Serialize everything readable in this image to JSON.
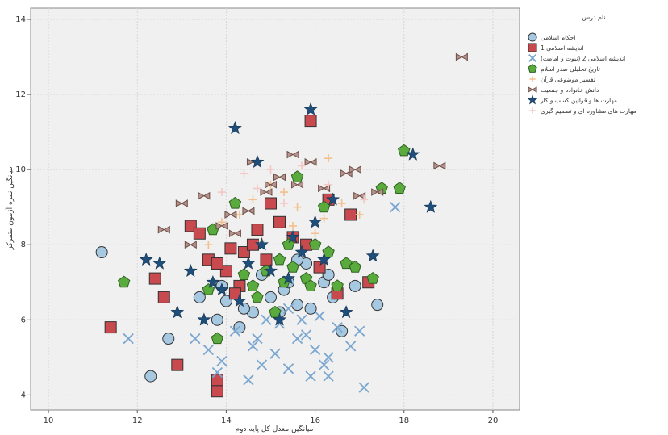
{
  "chart_data": {
    "type": "scatter",
    "xlabel": "میانگین معدل کل پایه دوم",
    "ylabel": "میانگین نمره آزمون متمرکز",
    "xlim": [
      9.6,
      20.6
    ],
    "ylim": [
      3.6,
      14.3
    ],
    "xticks": [
      "10",
      "12",
      "14",
      "16",
      "18",
      "20"
    ],
    "xtick_values": [
      10,
      12,
      14,
      16,
      18,
      20
    ],
    "yticks": [
      "4",
      "6",
      "8",
      "10",
      "12",
      "14"
    ],
    "ytick_values": [
      4,
      6,
      8,
      10,
      12,
      14
    ],
    "grid": true,
    "legend_title": "نام درس",
    "legend_position": "right",
    "series": [
      {
        "name": "احکام اسلامی",
        "marker": "circle",
        "color": "#a6c8e0",
        "points": [
          [
            11.2,
            7.8
          ],
          [
            12.3,
            4.5
          ],
          [
            12.7,
            5.5
          ],
          [
            13.4,
            6.6
          ],
          [
            13.8,
            6.0
          ],
          [
            14.0,
            6.5
          ],
          [
            14.3,
            5.8
          ],
          [
            14.6,
            6.2
          ],
          [
            15.0,
            6.6
          ],
          [
            15.3,
            6.8
          ],
          [
            15.6,
            6.4
          ],
          [
            15.9,
            6.3
          ],
          [
            16.2,
            7.0
          ],
          [
            16.6,
            5.7
          ],
          [
            16.9,
            6.9
          ],
          [
            17.4,
            6.4
          ],
          [
            14.8,
            7.2
          ],
          [
            15.4,
            7.0
          ],
          [
            15.8,
            7.5
          ],
          [
            16.3,
            7.2
          ],
          [
            13.9,
            6.9
          ],
          [
            14.4,
            6.3
          ],
          [
            15.2,
            6.2
          ],
          [
            16.4,
            6.6
          ],
          [
            15.6,
            7.6
          ]
        ]
      },
      {
        "name": "اندیشه اسلامی 1",
        "marker": "square",
        "color": "#c8494e",
        "points": [
          [
            11.4,
            5.8
          ],
          [
            12.4,
            7.1
          ],
          [
            12.6,
            6.6
          ],
          [
            12.9,
            4.8
          ],
          [
            13.2,
            8.5
          ],
          [
            13.4,
            8.3
          ],
          [
            13.8,
            4.1
          ],
          [
            13.8,
            4.4
          ],
          [
            14.1,
            7.9
          ],
          [
            14.4,
            7.8
          ],
          [
            14.6,
            8.0
          ],
          [
            14.9,
            7.6
          ],
          [
            15.2,
            8.6
          ],
          [
            15.5,
            8.2
          ],
          [
            15.9,
            11.3
          ],
          [
            16.3,
            9.2
          ],
          [
            16.5,
            6.7
          ],
          [
            16.8,
            8.8
          ],
          [
            17.2,
            7.0
          ],
          [
            14.0,
            7.3
          ],
          [
            14.3,
            6.9
          ],
          [
            13.6,
            7.6
          ],
          [
            15.0,
            9.1
          ],
          [
            15.8,
            8.0
          ],
          [
            14.7,
            8.4
          ],
          [
            16.1,
            7.4
          ],
          [
            14.2,
            6.7
          ],
          [
            13.8,
            7.5
          ]
        ]
      },
      {
        "name": "اندیشه اسلامی 2 (نبوت و امامت)",
        "marker": "x",
        "color": "#7aa6cf",
        "points": [
          [
            11.8,
            5.5
          ],
          [
            13.3,
            5.5
          ],
          [
            13.6,
            5.2
          ],
          [
            13.9,
            4.9
          ],
          [
            14.2,
            5.7
          ],
          [
            14.6,
            5.3
          ],
          [
            14.8,
            4.8
          ],
          [
            15.1,
            5.1
          ],
          [
            15.4,
            4.7
          ],
          [
            15.6,
            5.5
          ],
          [
            15.8,
            5.6
          ],
          [
            16.0,
            5.2
          ],
          [
            16.2,
            4.8
          ],
          [
            15.9,
            4.5
          ],
          [
            16.3,
            5.0
          ],
          [
            16.8,
            5.3
          ],
          [
            17.1,
            4.2
          ],
          [
            17.8,
            9.0
          ],
          [
            16.3,
            4.5
          ],
          [
            14.7,
            5.5
          ],
          [
            15.2,
            5.9
          ],
          [
            14.9,
            6.0
          ],
          [
            15.4,
            6.3
          ],
          [
            16.1,
            6.1
          ],
          [
            16.5,
            5.8
          ],
          [
            15.7,
            6.0
          ],
          [
            17.0,
            5.7
          ],
          [
            13.8,
            4.6
          ],
          [
            14.5,
            4.4
          ]
        ]
      },
      {
        "name": "تاریخ تحلیلی صدر اسلام",
        "marker": "pentagon",
        "color": "#5aab3e",
        "points": [
          [
            11.7,
            7.0
          ],
          [
            13.6,
            6.8
          ],
          [
            13.8,
            5.5
          ],
          [
            14.2,
            9.1
          ],
          [
            14.6,
            6.9
          ],
          [
            14.9,
            7.3
          ],
          [
            15.1,
            6.2
          ],
          [
            15.3,
            7.0
          ],
          [
            15.6,
            9.8
          ],
          [
            15.8,
            7.1
          ],
          [
            16.2,
            9.0
          ],
          [
            16.5,
            6.9
          ],
          [
            16.7,
            7.5
          ],
          [
            17.3,
            7.1
          ],
          [
            17.5,
            9.5
          ],
          [
            17.9,
            9.5
          ],
          [
            18.0,
            10.5
          ],
          [
            16.0,
            8.0
          ],
          [
            15.5,
            7.4
          ],
          [
            14.4,
            7.2
          ],
          [
            13.7,
            8.4
          ],
          [
            15.2,
            7.6
          ],
          [
            16.3,
            7.8
          ],
          [
            15.9,
            6.9
          ],
          [
            14.7,
            6.6
          ],
          [
            16.9,
            7.4
          ],
          [
            15.4,
            8.0
          ]
        ]
      },
      {
        "name": "تفسیر موضوعی قرآن",
        "marker": "plus",
        "color": "#f2c08c",
        "points": [
          [
            13.9,
            8.6
          ],
          [
            14.3,
            8.8
          ],
          [
            14.6,
            9.2
          ],
          [
            15.0,
            9.6
          ],
          [
            15.3,
            9.4
          ],
          [
            15.6,
            9.0
          ],
          [
            16.0,
            8.3
          ],
          [
            16.3,
            10.3
          ],
          [
            16.6,
            9.1
          ],
          [
            17.0,
            8.8
          ],
          [
            14.8,
            8.1
          ],
          [
            15.5,
            8.5
          ],
          [
            16.2,
            8.7
          ],
          [
            13.6,
            8.0
          ]
        ]
      },
      {
        "name": "دانش خانواده و جمعیت",
        "marker": "bowtie",
        "color": "#b5938c",
        "points": [
          [
            12.6,
            8.4
          ],
          [
            13.0,
            9.1
          ],
          [
            13.5,
            9.3
          ],
          [
            13.9,
            8.5
          ],
          [
            14.1,
            8.8
          ],
          [
            14.5,
            8.9
          ],
          [
            14.9,
            9.4
          ],
          [
            15.0,
            9.6
          ],
          [
            15.2,
            9.8
          ],
          [
            15.6,
            9.6
          ],
          [
            15.9,
            10.2
          ],
          [
            16.2,
            9.5
          ],
          [
            16.7,
            9.9
          ],
          [
            17.0,
            9.3
          ],
          [
            17.4,
            9.4
          ],
          [
            18.8,
            10.1
          ],
          [
            19.3,
            13.0
          ],
          [
            14.6,
            10.2
          ],
          [
            15.5,
            10.4
          ],
          [
            16.9,
            10.0
          ],
          [
            14.2,
            8.3
          ],
          [
            13.2,
            8.0
          ]
        ]
      },
      {
        "name": "مهارت ها و قوانین کسب و کار",
        "marker": "star",
        "color": "#1f4e7a",
        "points": [
          [
            12.2,
            7.6
          ],
          [
            12.5,
            7.5
          ],
          [
            12.9,
            6.2
          ],
          [
            13.2,
            7.3
          ],
          [
            13.5,
            6.0
          ],
          [
            13.9,
            6.8
          ],
          [
            14.2,
            11.1
          ],
          [
            14.5,
            7.5
          ],
          [
            14.7,
            10.2
          ],
          [
            15.0,
            7.3
          ],
          [
            15.4,
            7.1
          ],
          [
            15.7,
            7.8
          ],
          [
            15.9,
            11.6
          ],
          [
            16.2,
            7.6
          ],
          [
            16.4,
            9.2
          ],
          [
            16.7,
            6.2
          ],
          [
            17.3,
            7.7
          ],
          [
            18.2,
            10.4
          ],
          [
            18.6,
            9.0
          ],
          [
            14.3,
            6.5
          ],
          [
            15.2,
            6.0
          ],
          [
            13.7,
            7.0
          ],
          [
            16.0,
            8.6
          ],
          [
            14.8,
            8.0
          ],
          [
            15.5,
            8.2
          ]
        ]
      },
      {
        "name": "مهارت های مشاوره ای و تصمیم گیری",
        "marker": "plus",
        "color": "#f4c7c7",
        "points": [
          [
            13.9,
            9.4
          ],
          [
            14.4,
            9.9
          ],
          [
            15.0,
            10.0
          ],
          [
            15.7,
            10.1
          ],
          [
            16.3,
            9.6
          ],
          [
            17.1,
            9.2
          ],
          [
            15.3,
            9.1
          ],
          [
            14.7,
            9.5
          ]
        ]
      }
    ]
  }
}
